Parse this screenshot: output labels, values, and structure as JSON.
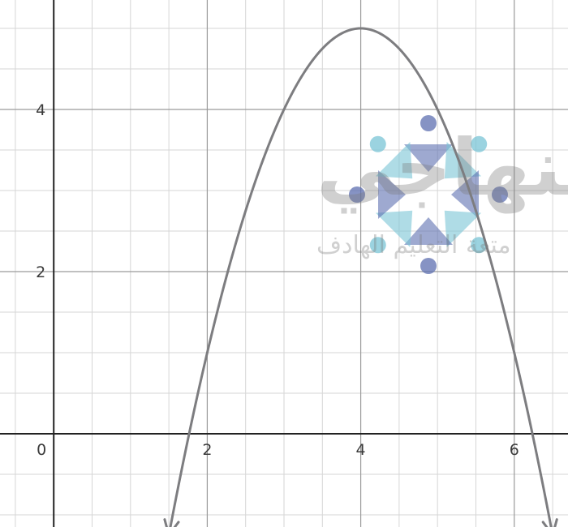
{
  "chart_data": {
    "type": "line",
    "title": "",
    "xlabel": "",
    "ylabel": "",
    "xlim": [
      -0.7,
      6.7
    ],
    "ylim": [
      -1.15,
      5.35
    ],
    "x_ticks": [
      0,
      2,
      4,
      6
    ],
    "x_tick_labels": [
      "0",
      "2",
      "4",
      "6"
    ],
    "y_ticks": [
      2,
      4
    ],
    "y_tick_labels": [
      "2",
      "4"
    ],
    "grid": true,
    "grid_minor_step": 0.5,
    "series": [
      {
        "function": "y = 5 - (x - 4)^2",
        "vertex": [
          4,
          5
        ],
        "x": [
          1.5,
          2,
          2.5,
          3,
          3.5,
          4,
          4.5,
          5,
          5.5,
          6,
          6.5
        ],
        "values": [
          -1.25,
          1,
          2.75,
          4,
          4.75,
          5,
          4.75,
          4,
          2.75,
          1,
          -1.25
        ],
        "color": "#7d7d80",
        "arrows_both_ends": true
      }
    ]
  },
  "watermark": {
    "main_text": "منهاجي",
    "sub_text": "متعة التعليم الهادف",
    "color": "#7b7b7b",
    "logo_colors": [
      "#5d6fb0",
      "#79c4d6"
    ]
  }
}
